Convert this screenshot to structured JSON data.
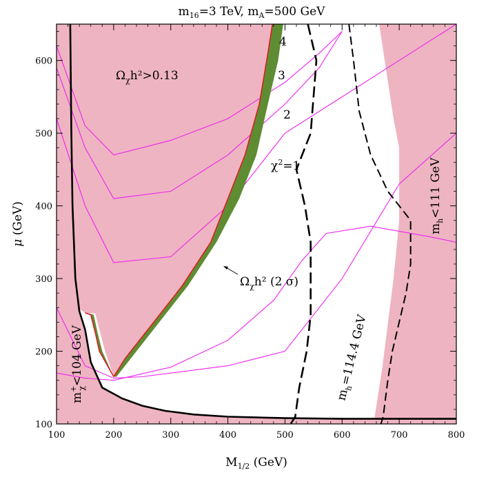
{
  "chart_data": {
    "type": "area",
    "title": "m16=3 TeV,  mA=500 GeV",
    "title_parts": {
      "m1": "m",
      "s1": "16",
      "v1": "=3 TeV,  ",
      "m2": "m",
      "s2": "A",
      "v2": "=500 GeV"
    },
    "xlabel": {
      "base": "M",
      "sub": "1/2",
      "unit": " (GeV)"
    },
    "ylabel": {
      "base": "μ",
      "unit": " (GeV)"
    },
    "xlim": [
      100,
      800
    ],
    "ylim": [
      100,
      650
    ],
    "xticks": [
      100,
      200,
      300,
      400,
      500,
      600,
      700,
      800
    ],
    "yticks": [
      100,
      200,
      300,
      400,
      500,
      600
    ],
    "colors": {
      "excluded": "#eeb4c2",
      "band": "#5e8c32",
      "band_edge": "#e8101a",
      "contour": "#ee22ee",
      "line": "#000000"
    },
    "regions": {
      "relic_excluded": [
        [
          100,
          650
        ],
        [
          478,
          650
        ],
        [
          470,
          610
        ],
        [
          455,
          540
        ],
        [
          430,
          470
        ],
        [
          400,
          410
        ],
        [
          370,
          350
        ],
        [
          320,
          290
        ],
        [
          270,
          240
        ],
        [
          220,
          190
        ],
        [
          200,
          165
        ],
        [
          185,
          200
        ],
        [
          175,
          230
        ],
        [
          168,
          252
        ],
        [
          150,
          253
        ],
        [
          140,
          258
        ],
        [
          100,
          258
        ]
      ],
      "higgs_excluded": [
        [
          665,
          650
        ],
        [
          800,
          650
        ],
        [
          800,
          100
        ],
        [
          655,
          100
        ],
        [
          670,
          175
        ],
        [
          690,
          300
        ],
        [
          700,
          380
        ],
        [
          700,
          480
        ],
        [
          690,
          520
        ]
      ],
      "chargino_excluded": [
        [
          100,
          100
        ],
        [
          800,
          100
        ],
        [
          800,
          107
        ],
        [
          600,
          107
        ],
        [
          500,
          108
        ],
        [
          400,
          110
        ],
        [
          340,
          113
        ],
        [
          290,
          118
        ],
        [
          250,
          125
        ],
        [
          215,
          135
        ],
        [
          180,
          150
        ],
        [
          160,
          185
        ],
        [
          150,
          230
        ],
        [
          140,
          255
        ],
        [
          133,
          300
        ],
        [
          128,
          400
        ],
        [
          126,
          500
        ],
        [
          124,
          650
        ],
        [
          100,
          650
        ]
      ]
    },
    "relic_band": {
      "label": "Ωχh² (2 σ)",
      "upper_edge": [
        [
          497,
          650
        ],
        [
          488,
          600
        ],
        [
          470,
          540
        ],
        [
          450,
          470
        ],
        [
          420,
          410
        ],
        [
          380,
          350
        ],
        [
          330,
          290
        ],
        [
          280,
          240
        ],
        [
          230,
          190
        ],
        [
          205,
          165
        ]
      ],
      "lower_edge": [
        [
          478,
          650
        ],
        [
          470,
          610
        ],
        [
          455,
          540
        ],
        [
          430,
          470
        ],
        [
          400,
          410
        ],
        [
          370,
          350
        ],
        [
          320,
          290
        ],
        [
          270,
          240
        ],
        [
          220,
          190
        ],
        [
          200,
          165
        ]
      ],
      "stub_upper": [
        [
          153,
          253
        ],
        [
          165,
          250
        ],
        [
          172,
          225
        ],
        [
          180,
          200
        ],
        [
          200,
          165
        ]
      ],
      "stub_lower": [
        [
          150,
          253
        ],
        [
          160,
          250
        ],
        [
          168,
          225
        ],
        [
          175,
          200
        ],
        [
          200,
          165
        ]
      ]
    },
    "chi2_contours": [
      {
        "label": "χ²=1",
        "points": [
          [
            100,
            170
          ],
          [
            150,
            163
          ],
          [
            200,
            160
          ],
          [
            300,
            178
          ],
          [
            400,
            215
          ],
          [
            480,
            270
          ],
          [
            530,
            325
          ],
          [
            572,
            362
          ],
          [
            650,
            372
          ],
          [
            750,
            358
          ],
          [
            800,
            350
          ]
        ]
      },
      {
        "label": "χ²=2",
        "points": [
          [
            100,
            260
          ],
          [
            150,
            180
          ],
          [
            200,
            163
          ],
          [
            250,
            165
          ],
          [
            300,
            170
          ],
          [
            400,
            180
          ],
          [
            500,
            200
          ],
          [
            600,
            300
          ],
          [
            700,
            430
          ],
          [
            800,
            500
          ]
        ]
      },
      {
        "label": "χ²=3",
        "points": [
          [
            100,
            520
          ],
          [
            150,
            400
          ],
          [
            200,
            322
          ],
          [
            300,
            330
          ],
          [
            400,
            400
          ],
          [
            500,
            500
          ],
          [
            600,
            550
          ],
          [
            700,
            600
          ],
          [
            800,
            650
          ]
        ]
      },
      {
        "label": "χ²=4",
        "points": [
          [
            100,
            590
          ],
          [
            150,
            480
          ],
          [
            200,
            410
          ],
          [
            300,
            420
          ],
          [
            400,
            470
          ],
          [
            500,
            540
          ],
          [
            560,
            590
          ],
          [
            600,
            640
          ]
        ]
      },
      {
        "label": "",
        "points": [
          [
            100,
            620
          ],
          [
            150,
            510
          ],
          [
            200,
            470
          ],
          [
            300,
            490
          ],
          [
            400,
            520
          ],
          [
            500,
            570
          ],
          [
            560,
            610
          ],
          [
            600,
            640
          ]
        ]
      }
    ],
    "mh_1144": {
      "label": "mh=114.4 GeV",
      "points": [
        [
          540,
          650
        ],
        [
          555,
          600
        ],
        [
          545,
          500
        ],
        [
          520,
          450
        ],
        [
          535,
          400
        ],
        [
          545,
          350
        ],
        [
          545,
          250
        ],
        [
          538,
          200
        ],
        [
          525,
          150
        ],
        [
          518,
          110
        ],
        [
          510,
          100
        ]
      ]
    },
    "mh_111": {
      "label": "mh<111 GeV",
      "points": [
        [
          612,
          650
        ],
        [
          620,
          600
        ],
        [
          630,
          530
        ],
        [
          650,
          470
        ],
        [
          680,
          420
        ],
        [
          720,
          380
        ],
        [
          720,
          320
        ],
        [
          712,
          280
        ],
        [
          700,
          240
        ],
        [
          688,
          200
        ],
        [
          680,
          160
        ],
        [
          672,
          110
        ],
        [
          668,
          100
        ]
      ]
    },
    "chargino_line": {
      "label": "m+χ<104 GeV",
      "points": [
        [
          124,
          650
        ],
        [
          126,
          500
        ],
        [
          128,
          400
        ],
        [
          133,
          300
        ],
        [
          140,
          255
        ],
        [
          150,
          230
        ],
        [
          160,
          185
        ],
        [
          180,
          150
        ],
        [
          215,
          135
        ],
        [
          250,
          125
        ],
        [
          290,
          118
        ],
        [
          340,
          113
        ],
        [
          400,
          110
        ],
        [
          500,
          108
        ],
        [
          600,
          107
        ],
        [
          800,
          107
        ]
      ]
    },
    "annotations": {
      "omega_bound": {
        "lead": "Ω",
        "sub": "χ",
        "rest": "h²>0.13"
      },
      "band_label": {
        "lead": "Ω",
        "sub": "χ",
        "rest": "h²  (2 σ)"
      },
      "mh_1144": {
        "lead": "m",
        "sub": "h",
        "rest": "=114.4 GeV"
      },
      "mh_111": {
        "lead": "m",
        "sub": "h",
        "rest": "<111 GeV"
      },
      "chargino": {
        "lead": "m",
        "sup": "+",
        "sub": "χ",
        "rest": "<104 GeV"
      },
      "chi2_1": {
        "lead": "χ",
        "sup": "2",
        "rest": "=1"
      },
      "chi2_2": "2",
      "chi2_3": "3",
      "chi2_4": "4"
    }
  }
}
